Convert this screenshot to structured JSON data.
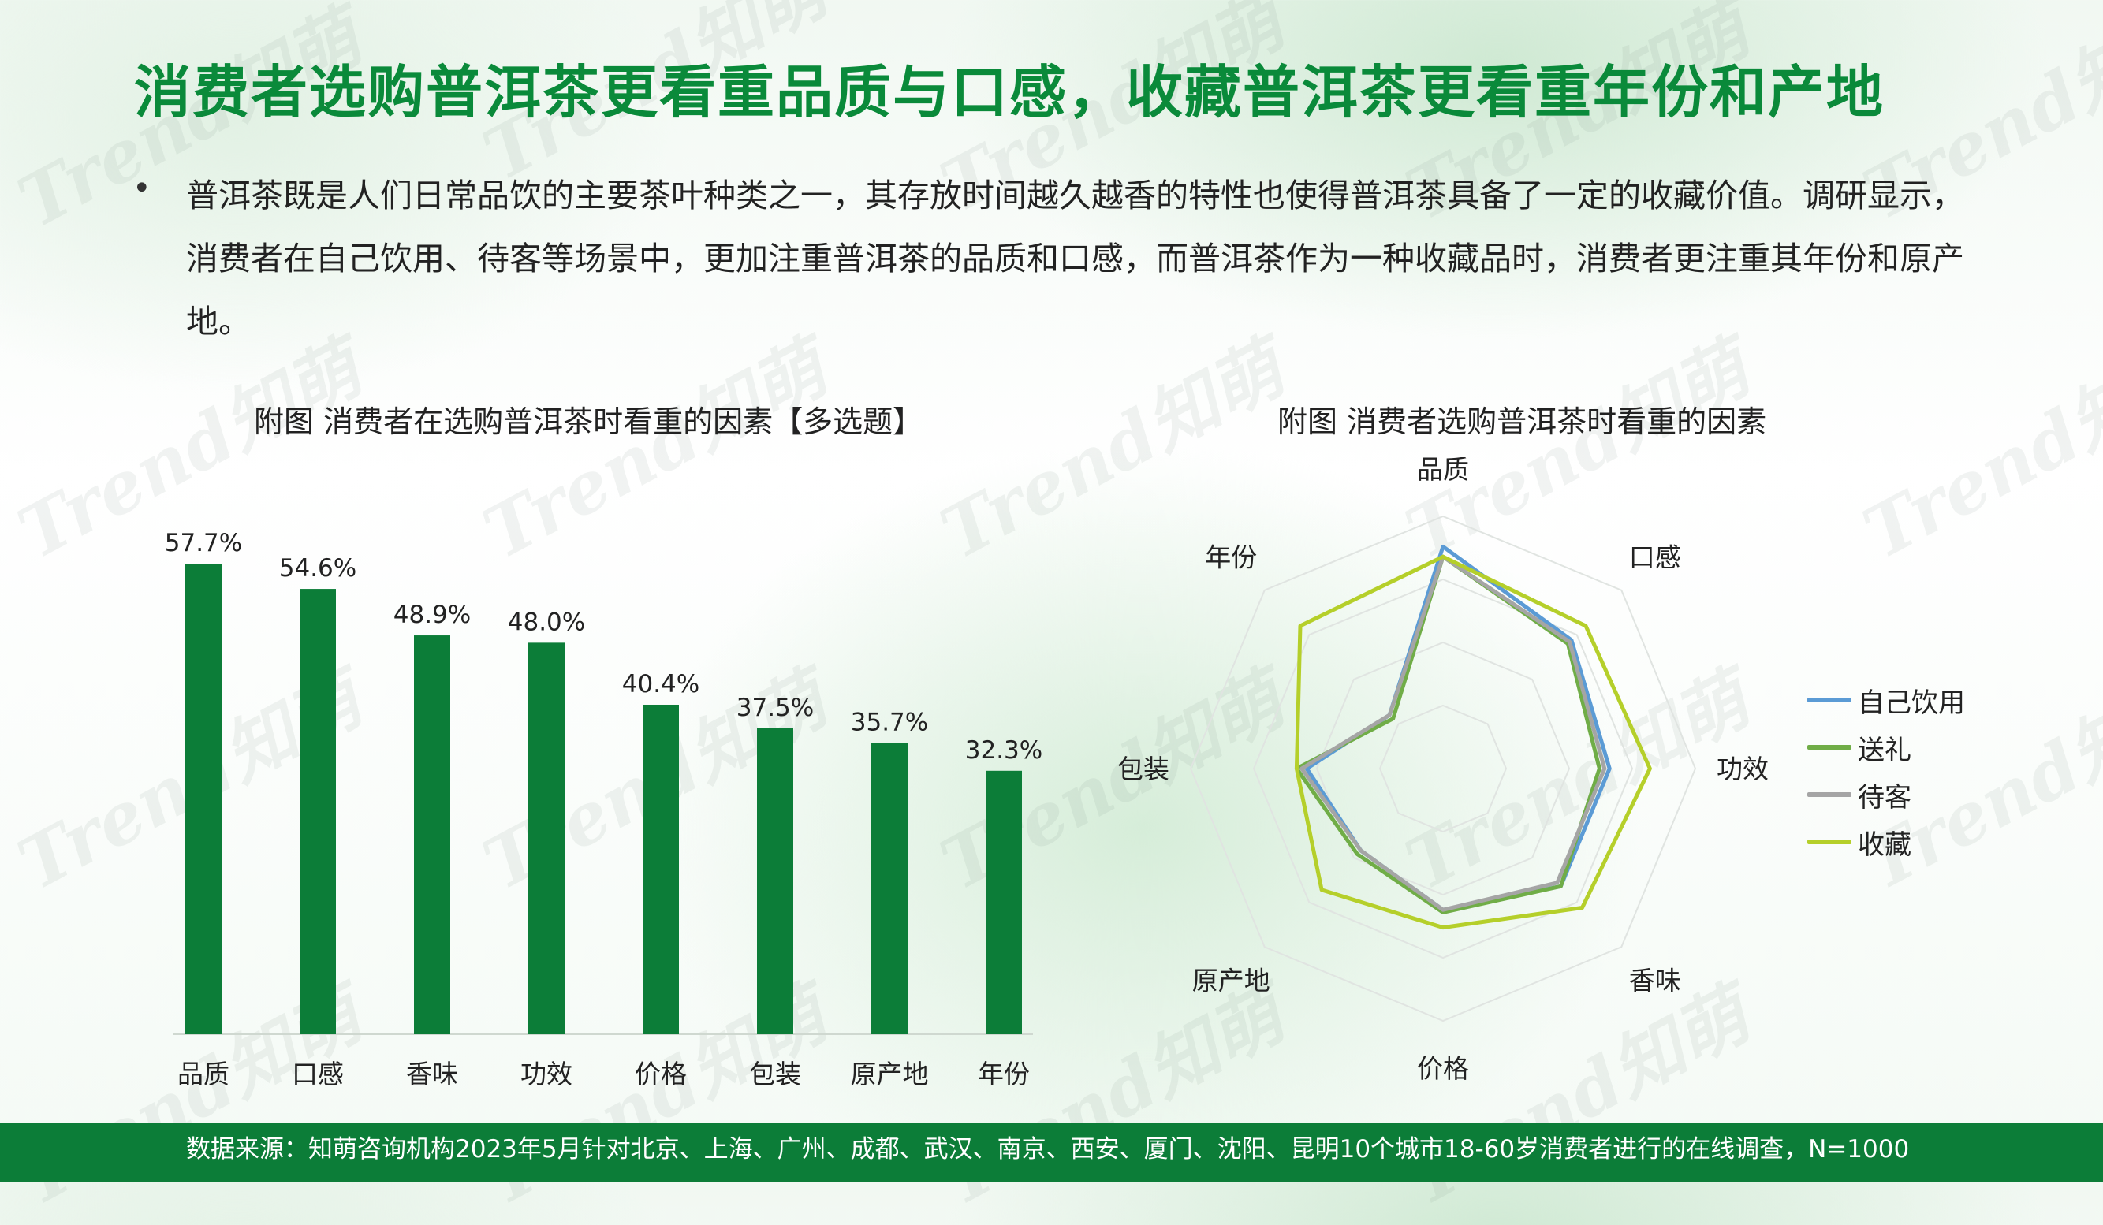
{
  "title": "消费者选购普洱茶更看重品质与口感，收藏普洱茶更看重年份和产地",
  "bullet": {
    "dot": "•",
    "text": "普洱茶既是人们日常品饮的主要茶叶种类之一，其存放时间越久越香的特性也使得普洱茶具备了一定的收藏价值。调研显示，消费者在自己饮用、待客等场景中，更加注重普洱茶的品质和口感，而普洱茶作为一种收藏品时，消费者更注重其年份和原产地。"
  },
  "watermark": "Trend知萌",
  "footer": "数据来源：知萌咨询机构2023年5月针对北京、上海、广州、成都、武汉、南京、西安、厦门、沈阳、昆明10个城市18-60岁消费者进行的在线调查，N=1000",
  "colors": {
    "title": "#0a8a3a",
    "bar": "#0c7d38",
    "footer": "#0c7d38"
  },
  "chart_data": [
    {
      "type": "bar",
      "title": "附图 消费者在选购普洱茶时看重的因素【多选题】",
      "categories": [
        "品质",
        "口感",
        "香味",
        "功效",
        "价格",
        "包装",
        "原产地",
        "年份"
      ],
      "values": [
        57.7,
        54.6,
        48.9,
        48.0,
        40.4,
        37.5,
        35.7,
        32.3
      ],
      "value_labels": [
        "57.7%",
        "54.6%",
        "48.9%",
        "48.0%",
        "40.4%",
        "37.5%",
        "35.7%",
        "32.3%"
      ],
      "xlabel": "",
      "ylabel": "",
      "ylim": [
        0,
        60
      ],
      "grid": false
    },
    {
      "type": "radar",
      "title": "附图 消费者选购普洱茶时看重的因素",
      "axes": [
        "品质",
        "口感",
        "功效",
        "香味",
        "价格",
        "原产地",
        "包装",
        "年份"
      ],
      "rlim": [
        0,
        1
      ],
      "legend_position": "right",
      "series": [
        {
          "name": "自己饮用",
          "color": "#5b9bd5",
          "values": [
            0.88,
            0.72,
            0.66,
            0.66,
            0.56,
            0.46,
            0.54,
            0.3
          ]
        },
        {
          "name": "送礼",
          "color": "#70ad47",
          "values": [
            0.84,
            0.7,
            0.62,
            0.66,
            0.57,
            0.48,
            0.58,
            0.28
          ]
        },
        {
          "name": "待客",
          "color": "#a5a5a5",
          "values": [
            0.84,
            0.71,
            0.64,
            0.64,
            0.56,
            0.46,
            0.56,
            0.3
          ]
        },
        {
          "name": "收藏",
          "color": "#b5cf2a",
          "values": [
            0.84,
            0.8,
            0.82,
            0.78,
            0.63,
            0.68,
            0.58,
            0.8
          ]
        }
      ]
    }
  ]
}
